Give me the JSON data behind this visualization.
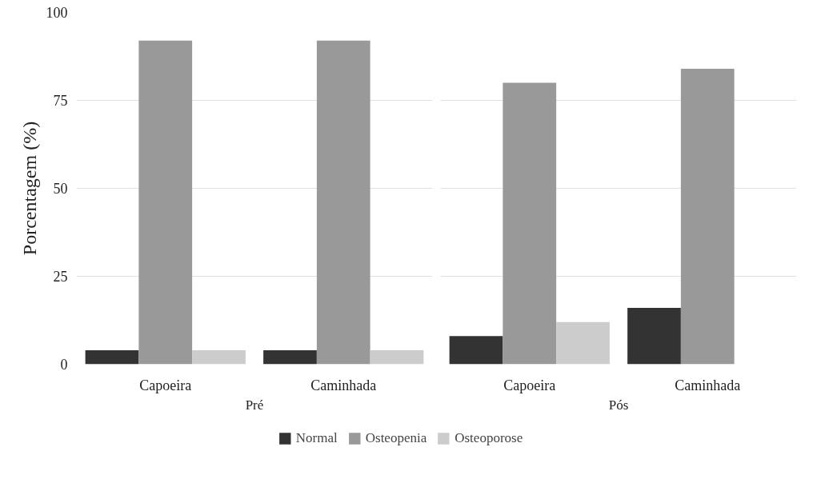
{
  "chart_data": [
    {
      "type": "bar",
      "xlabel": "Pré",
      "ylabel": "Porcentagem (%)",
      "categories": [
        "Capoeira",
        "Caminhada"
      ],
      "ylim": [
        0,
        100
      ],
      "yticks": [
        0,
        25,
        50,
        75,
        100
      ],
      "grid": "y",
      "legend": "bottom",
      "series": [
        {
          "name": "Normal",
          "color": "#333333",
          "values": [
            4,
            4
          ]
        },
        {
          "name": "Osteopenia",
          "color": "#999999",
          "values": [
            92,
            92
          ]
        },
        {
          "name": "Osteoporose",
          "color": "#cccccc",
          "values": [
            4,
            4
          ]
        }
      ]
    },
    {
      "type": "bar",
      "xlabel": "Pós",
      "categories": [
        "Capoeira",
        "Caminhada"
      ],
      "ylim": [
        0,
        100
      ],
      "yticks": [
        0,
        25,
        50,
        75,
        100
      ],
      "grid": "y",
      "tick_labels": "x",
      "series": [
        {
          "color": "#333333",
          "values": [
            8,
            16
          ]
        },
        {
          "color": "#999999",
          "values": [
            80,
            84
          ]
        },
        {
          "color": "#cccccc",
          "values": [
            12,
            null
          ]
        }
      ]
    }
  ]
}
